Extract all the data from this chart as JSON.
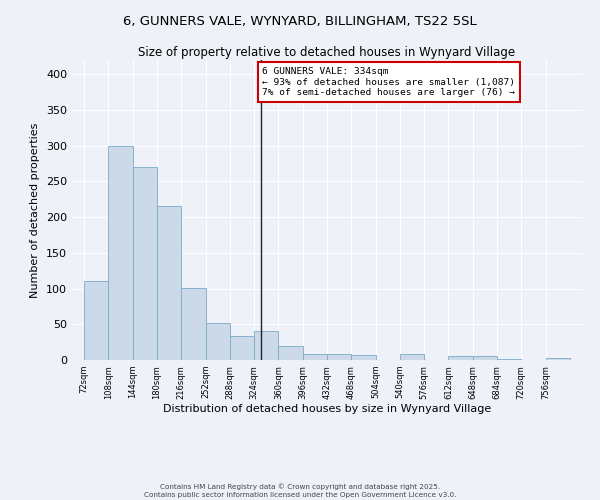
{
  "title1": "6, GUNNERS VALE, WYNYARD, BILLINGHAM, TS22 5SL",
  "title2": "Size of property relative to detached houses in Wynyard Village",
  "xlabel": "Distribution of detached houses by size in Wynyard Village",
  "ylabel": "Number of detached properties",
  "bar_color": "#ccd9e8",
  "bar_edge_color": "#7aaac8",
  "highlight_line_color": "#222222",
  "background_color": "#eef2f8",
  "grid_color": "#ffffff",
  "annotation_box_color": "#ffffff",
  "annotation_border_color": "#cc0000",
  "annotation_text": "6 GUNNERS VALE: 334sqm\n← 93% of detached houses are smaller (1,087)\n7% of semi-detached houses are larger (76) →",
  "footnote1": "Contains HM Land Registry data © Crown copyright and database right 2025.",
  "footnote2": "Contains public sector information licensed under the Open Government Licence v3.0.",
  "bins": [
    72,
    108,
    144,
    180,
    216,
    252,
    288,
    324,
    360,
    396,
    432,
    468,
    504,
    540,
    576,
    612,
    648,
    684,
    720,
    756,
    792
  ],
  "counts": [
    110,
    299,
    270,
    215,
    101,
    52,
    34,
    41,
    19,
    8,
    8,
    7,
    0,
    8,
    0,
    5,
    5,
    1,
    0,
    3
  ],
  "ylim": [
    0,
    420
  ],
  "yticks": [
    0,
    50,
    100,
    150,
    200,
    250,
    300,
    350,
    400
  ],
  "highlight_bin_index": 7,
  "property_sqm": 334
}
